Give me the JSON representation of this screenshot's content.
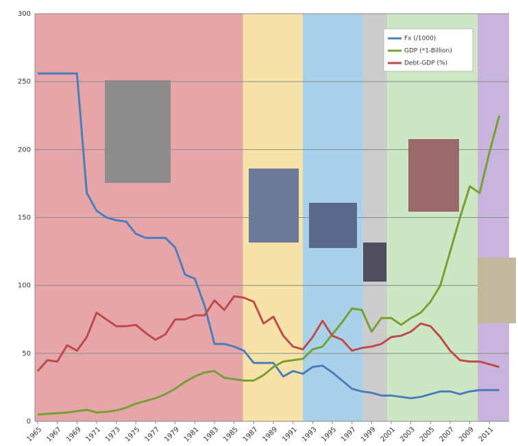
{
  "chart_data": {
    "type": "line",
    "x": [
      1965,
      1966,
      1967,
      1968,
      1969,
      1970,
      1971,
      1972,
      1973,
      1974,
      1975,
      1976,
      1977,
      1978,
      1979,
      1980,
      1981,
      1982,
      1983,
      1984,
      1985,
      1986,
      1987,
      1988,
      1989,
      1990,
      1991,
      1992,
      1993,
      1994,
      1995,
      1996,
      1997,
      1998,
      1999,
      2000,
      2001,
      2002,
      2003,
      2004,
      2005,
      2006,
      2007,
      2008,
      2009,
      2010,
      2011,
      2012
    ],
    "series": [
      {
        "name": "Fx (/1000)",
        "color": "#4a7ebb",
        "values": [
          256,
          256,
          256,
          256,
          256,
          168,
          155,
          150,
          148,
          147,
          138,
          135,
          135,
          135,
          128,
          108,
          105,
          85,
          57,
          57,
          55,
          52,
          43,
          43,
          43,
          33,
          37,
          35,
          40,
          41,
          36,
          30,
          24,
          22,
          21,
          19,
          19,
          18,
          17,
          18,
          20,
          22,
          22,
          20,
          22,
          23,
          23,
          23
        ]
      },
      {
        "name": "GDP (*1-Billion)",
        "color": "#77a033",
        "values": [
          5,
          5.5,
          6,
          6.5,
          7.5,
          8.5,
          6.5,
          7,
          8,
          10,
          13,
          15,
          17,
          20,
          24,
          29,
          33,
          36,
          37,
          32,
          31,
          30,
          30,
          34,
          40,
          44,
          45,
          46,
          53,
          55,
          64,
          73,
          83,
          82,
          66,
          76,
          76,
          71,
          76,
          80,
          88,
          100,
          125,
          150,
          173,
          168,
          198,
          225
        ]
      },
      {
        "name": "Debt-GDP (%)",
        "color": "#be4b48",
        "values": [
          37,
          45,
          44,
          56,
          52,
          62,
          80,
          75,
          70,
          70,
          71,
          65,
          60,
          64,
          75,
          75,
          78,
          78,
          89,
          82,
          92,
          91,
          88,
          72,
          77,
          63,
          55,
          53,
          62,
          74,
          63,
          60,
          52,
          54,
          55,
          57,
          62,
          63,
          66,
          72,
          70,
          62,
          52,
          45,
          44,
          44,
          42,
          40
        ]
      }
    ],
    "xlim": [
      1965,
      2013
    ],
    "xticks": [
      1965,
      1967,
      1969,
      1971,
      1973,
      1975,
      1977,
      1979,
      1981,
      1983,
      1985,
      1987,
      1989,
      1991,
      1993,
      1995,
      1997,
      1999,
      2001,
      2003,
      2005,
      2007,
      2009,
      2011
    ],
    "ylim": [
      0,
      300
    ],
    "yticks": [
      0,
      50,
      100,
      150,
      200,
      250,
      300
    ],
    "grid": true,
    "legend": "upper right",
    "bands": [
      {
        "start": 1964.7,
        "end": 1985.9,
        "color": "#e6a5a8"
      },
      {
        "start": 1985.9,
        "end": 1992,
        "color": "#f7e2a8"
      },
      {
        "start": 1992,
        "end": 1998.1,
        "color": "#a9d1ea"
      },
      {
        "start": 1998.1,
        "end": 2000.6,
        "color": "#cccccc"
      },
      {
        "start": 2000.6,
        "end": 2009.8,
        "color": "#cde6c4"
      },
      {
        "start": 2009.8,
        "end": 2013,
        "color": "#c8b4dc"
      }
    ]
  }
}
